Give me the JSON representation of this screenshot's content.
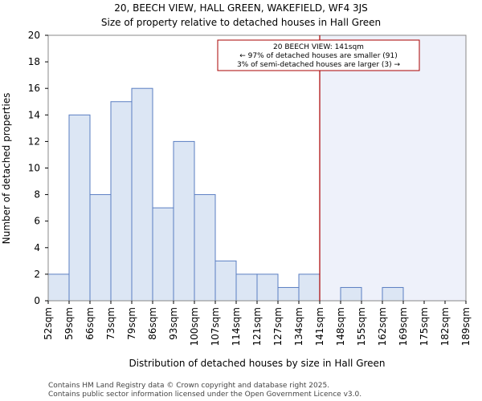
{
  "chart_data": {
    "type": "bar",
    "title": [
      "20, BEECH VIEW, HALL GREEN, WAKEFIELD, WF4 3JS",
      "Size of property relative to detached houses in Hall Green"
    ],
    "xlabel": "Distribution of detached houses by size in Hall Green",
    "ylabel": "Number of detached properties",
    "bin_edges": [
      52,
      59,
      66,
      73,
      79,
      86,
      93,
      100,
      107,
      114,
      121,
      127,
      134,
      141,
      148,
      155,
      162,
      169,
      175,
      182,
      189
    ],
    "tick_labels": [
      "52sqm",
      "59sqm",
      "66sqm",
      "73sqm",
      "79sqm",
      "86sqm",
      "93sqm",
      "100sqm",
      "107sqm",
      "114sqm",
      "121sqm",
      "127sqm",
      "134sqm",
      "141sqm",
      "148sqm",
      "155sqm",
      "162sqm",
      "169sqm",
      "175sqm",
      "182sqm",
      "189sqm"
    ],
    "values": [
      2,
      14,
      8,
      15,
      16,
      7,
      12,
      8,
      3,
      2,
      2,
      1,
      2,
      0,
      1,
      0,
      1,
      0,
      0,
      0
    ],
    "ylim": [
      0,
      20
    ],
    "yticks": [
      0,
      2,
      4,
      6,
      8,
      10,
      12,
      14,
      16,
      18,
      20
    ],
    "grid": false,
    "marker": {
      "value": 141,
      "label": "20 BEECH VIEW: 141sqm",
      "line2": "← 97% of detached houses are smaller (91)",
      "line3": "3% of semi-detached houses are larger (3) →",
      "color": "#aa0000"
    },
    "colors": {
      "bar_fill": "#dce6f4",
      "bar_stroke": "#5a7ec2",
      "highlight_region": "#eef1fa"
    }
  },
  "footer": {
    "line1": "Contains HM Land Registry data © Crown copyright and database right 2025.",
    "line2": "Contains public sector information licensed under the Open Government Licence v3.0."
  }
}
